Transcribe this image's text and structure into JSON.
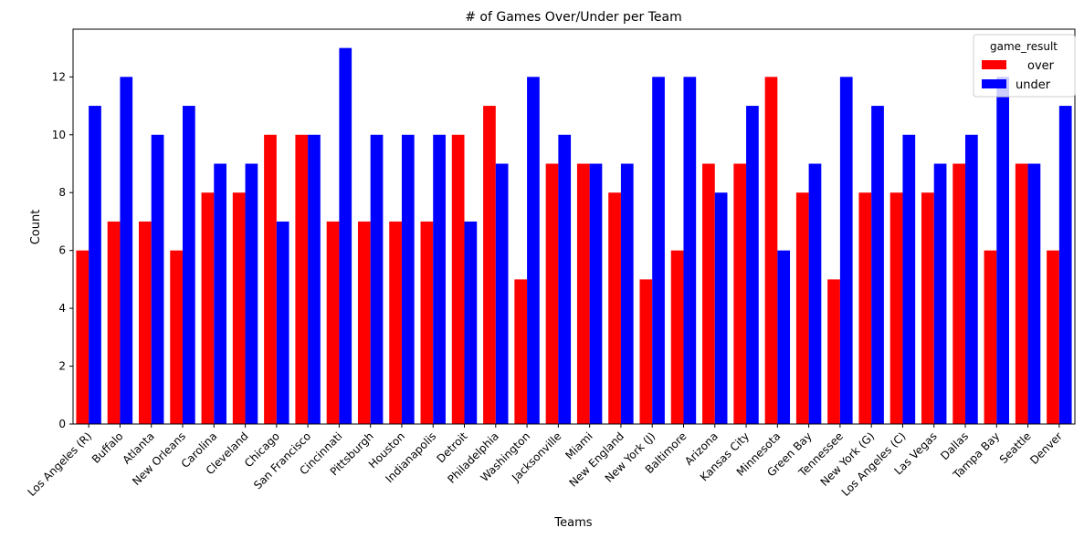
{
  "chart_data": {
    "type": "bar",
    "title": "# of Games Over/Under per Team",
    "xlabel": "Teams",
    "ylabel": "Count",
    "ylim": [
      0,
      13.65
    ],
    "yticks": [
      0,
      2,
      4,
      6,
      8,
      10,
      12
    ],
    "categories": [
      "Los Angeles (R)",
      "Buffalo",
      "Atlanta",
      "New Orleans",
      "Carolina",
      "Cleveland",
      "Chicago",
      "San Francisco",
      "Cincinnati",
      "Pittsburgh",
      "Houston",
      "Indianapolis",
      "Detroit",
      "Philadelphia",
      "Washington",
      "Jacksonville",
      "Miami",
      "New England",
      "New York (J)",
      "Baltimore",
      "Arizona",
      "Kansas City",
      "Minnesota",
      "Green Bay",
      "Tennessee",
      "New York (G)",
      "Los Angeles (C)",
      "Las Vegas",
      "Dallas",
      "Tampa Bay",
      "Seattle",
      "Denver"
    ],
    "series": [
      {
        "name": "over",
        "color": "#ff0000",
        "values": [
          6,
          7,
          7,
          6,
          8,
          8,
          10,
          10,
          7,
          7,
          7,
          7,
          10,
          11,
          5,
          9,
          9,
          8,
          5,
          6,
          9,
          9,
          12,
          8,
          5,
          8,
          8,
          8,
          9,
          6,
          9,
          6
        ]
      },
      {
        "name": "under",
        "color": "#0000ff",
        "values": [
          11,
          12,
          10,
          11,
          9,
          9,
          7,
          10,
          13,
          10,
          10,
          10,
          7,
          9,
          12,
          10,
          9,
          9,
          12,
          12,
          8,
          11,
          6,
          9,
          12,
          11,
          10,
          9,
          10,
          12,
          9,
          11
        ]
      }
    ],
    "legend": {
      "title": "game_result",
      "position": "top-right"
    }
  }
}
